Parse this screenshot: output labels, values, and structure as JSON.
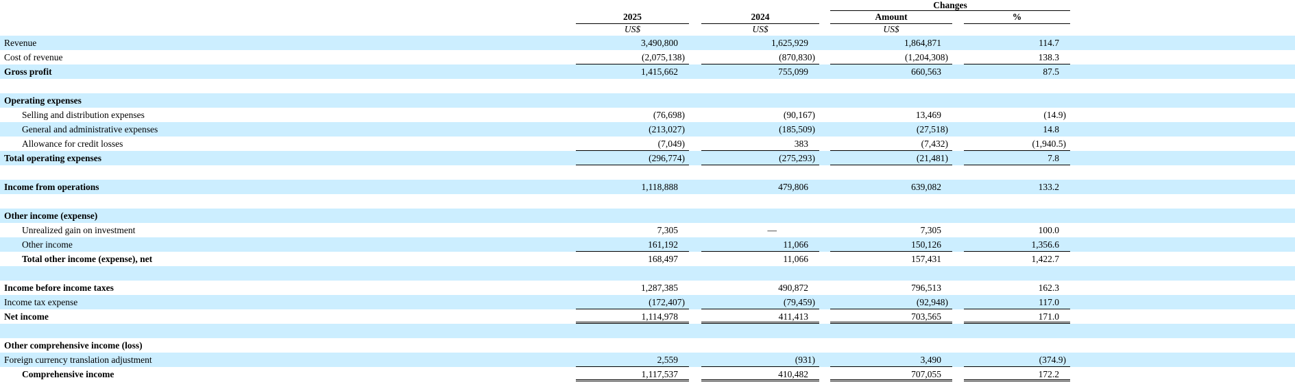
{
  "colors": {
    "stripe": "#cceeff",
    "text": "#000000",
    "border": "#000000"
  },
  "header": {
    "changes": "Changes",
    "y2025": "2025",
    "y2024": "2024",
    "amount": "Amount",
    "percent": "%",
    "currency": "US$"
  },
  "rows": [
    {
      "label": "Revenue",
      "indent": 0,
      "bold": false,
      "bg": "blue",
      "values": [
        "3,490,800",
        "1,625,929",
        "1,864,871",
        "114.7"
      ]
    },
    {
      "label": "Cost of revenue",
      "indent": 0,
      "bold": false,
      "bg": "white",
      "border": "single",
      "values": [
        "(2,075,138)",
        "(870,830)",
        "(1,204,308)",
        "138.3"
      ]
    },
    {
      "label": "Gross profit",
      "indent": 0,
      "bold": true,
      "bg": "blue",
      "values": [
        "1,415,662",
        "755,099",
        "660,563",
        "87.5"
      ]
    },
    {
      "blank": true,
      "bg": "white"
    },
    {
      "label": "Operating expenses",
      "indent": 0,
      "bold": true,
      "bg": "blue",
      "values": [
        "",
        "",
        "",
        ""
      ]
    },
    {
      "label": "Selling and distribution expenses",
      "indent": 1,
      "bold": false,
      "bg": "white",
      "values": [
        "(76,698)",
        "(90,167)",
        "13,469",
        "(14.9)"
      ]
    },
    {
      "label": "General and administrative expenses",
      "indent": 1,
      "bold": false,
      "bg": "blue",
      "values": [
        "(213,027)",
        "(185,509)",
        "(27,518)",
        "14.8"
      ]
    },
    {
      "label": "Allowance for credit losses",
      "indent": 1,
      "bold": false,
      "bg": "white",
      "border": "single",
      "values": [
        "(7,049)",
        "383",
        "(7,432)",
        "(1,940.5)"
      ]
    },
    {
      "label": "Total operating expenses",
      "indent": 0,
      "bold": true,
      "bg": "blue",
      "border": "single",
      "values": [
        "(296,774)",
        "(275,293)",
        "(21,481)",
        "7.8"
      ]
    },
    {
      "blank": true,
      "bg": "white"
    },
    {
      "label": "Income from operations",
      "indent": 0,
      "bold": true,
      "bg": "blue",
      "values": [
        "1,118,888",
        "479,806",
        "639,082",
        "133.2"
      ]
    },
    {
      "blank": true,
      "bg": "white"
    },
    {
      "label": "Other income (expense)",
      "indent": 0,
      "bold": true,
      "bg": "blue",
      "values": [
        "",
        "",
        "",
        ""
      ]
    },
    {
      "label": "Unrealized gain on investment",
      "indent": 1,
      "bold": false,
      "bg": "white",
      "values": [
        "7,305",
        "—",
        "7,305",
        "100.0"
      ]
    },
    {
      "label": "Other income",
      "indent": 1,
      "bold": false,
      "bg": "blue",
      "border": "single",
      "values": [
        "161,192",
        "11,066",
        "150,126",
        "1,356.6"
      ]
    },
    {
      "label": "Total other income (expense), net",
      "indent": 1,
      "bold": true,
      "bg": "white",
      "values": [
        "168,497",
        "11,066",
        "157,431",
        "1,422.7"
      ]
    },
    {
      "blank": true,
      "bg": "blue"
    },
    {
      "label": "Income before income taxes",
      "indent": 0,
      "bold": true,
      "bg": "white",
      "values": [
        "1,287,385",
        "490,872",
        "796,513",
        "162.3"
      ]
    },
    {
      "label": "Income tax expense",
      "indent": 0,
      "bold": false,
      "bg": "blue",
      "border": "single",
      "values": [
        "(172,407)",
        "(79,459)",
        "(92,948)",
        "117.0"
      ]
    },
    {
      "label": "Net income",
      "indent": 0,
      "bold": true,
      "bg": "white",
      "border": "double",
      "values": [
        "1,114,978",
        "411,413",
        "703,565",
        "171.0"
      ]
    },
    {
      "blank": true,
      "bg": "blue"
    },
    {
      "label": "Other comprehensive income (loss)",
      "indent": 0,
      "bold": true,
      "bg": "white",
      "values": [
        "",
        "",
        "",
        ""
      ]
    },
    {
      "label": "Foreign currency translation adjustment",
      "indent": 0,
      "bold": false,
      "bg": "blue",
      "border": "single",
      "values": [
        "2,559",
        "(931)",
        "3,490",
        "(374.9)"
      ]
    },
    {
      "label": "Comprehensive income",
      "indent": 1,
      "bold": true,
      "bg": "white",
      "border": "double",
      "values": [
        "1,117,537",
        "410,482",
        "707,055",
        "172.2"
      ]
    }
  ]
}
